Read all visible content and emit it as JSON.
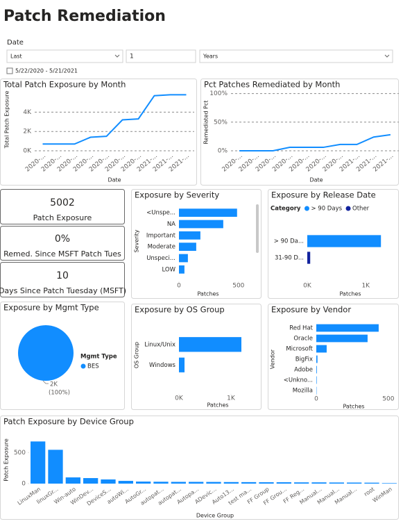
{
  "header": {
    "title": "Patch Remediation"
  },
  "filters": {
    "label": "Date",
    "mode": "Last",
    "count": "1",
    "unit": "Years",
    "range": "5/22/2020 - 5/21/2021"
  },
  "cards": [
    {
      "value": "5002",
      "label": "Patch Exposure"
    },
    {
      "value": "0%",
      "label": "Remed. Since MSFT Patch Tues"
    },
    {
      "value": "10",
      "label": "Days Since Patch Tuesday (MSFT)"
    }
  ],
  "chart_data": [
    {
      "type": "line",
      "title": "Total Patch Exposure by Month",
      "x_label": "Date",
      "y_label": "Total Patch Exposure",
      "categories": [
        "2020-...",
        "2020-...",
        "2020-...",
        "2020-...",
        "2020-...",
        "2020-...",
        "2020-...",
        "2021-...",
        "2021-...",
        "2021-..."
      ],
      "values": [
        700,
        700,
        700,
        1400,
        1500,
        3200,
        3300,
        5700,
        5800,
        5800
      ],
      "color": "#118dff",
      "ylim": [
        0,
        6400
      ],
      "yticks": [
        {
          "value": 0,
          "label": "0K"
        },
        {
          "value": 2000,
          "label": "2K"
        },
        {
          "value": 4000,
          "label": "4K"
        }
      ],
      "grid": true
    },
    {
      "type": "line",
      "title": "Pct Patches Remediated by Month",
      "x_label": "Date",
      "y_label": "Remediated Pct",
      "categories": [
        "2020-...",
        "2020-...",
        "2020-...",
        "2020-...",
        "2020-...",
        "2020-...",
        "2020-...",
        "2021-...",
        "2021-...",
        "2021-..."
      ],
      "values": [
        0,
        0,
        0,
        6,
        6,
        6,
        11,
        11,
        24,
        28
      ],
      "color": "#118dff",
      "ylim": [
        0,
        108
      ],
      "yticks": [
        {
          "value": 0,
          "label": "0%"
        },
        {
          "value": 50,
          "label": "50%"
        },
        {
          "value": 100,
          "label": "100%"
        }
      ],
      "grid": true
    },
    {
      "type": "hbar",
      "title": "Exposure by Severity",
      "x_label": "Patches",
      "y_label": "Severity",
      "categories": [
        "<Unspe...",
        "NA",
        "Important",
        "Moderate",
        "Unspeci...",
        "LOW"
      ],
      "values": [
        488,
        372,
        180,
        145,
        75,
        46
      ],
      "color": "#118dff",
      "xlim": [
        0,
        600
      ],
      "xticks": [
        0,
        500
      ]
    },
    {
      "type": "hbar",
      "title": "Exposure by Release Date",
      "x_label": "Patches",
      "legend_title": "Category",
      "categories": [
        "> 90 Da...",
        "31-90 D..."
      ],
      "series": [
        {
          "name": "> 90 Days",
          "color": "#118dff",
          "values": [
            1260,
            null
          ]
        },
        {
          "name": "Other",
          "color": "#12239e",
          "values": [
            null,
            50
          ]
        }
      ],
      "xlim": [
        0,
        1400
      ],
      "xticks": [
        {
          "value": 0,
          "label": "0K"
        },
        {
          "value": 1000,
          "label": "1K"
        }
      ]
    },
    {
      "type": "pie",
      "title": "Exposure by Mgmt Type",
      "legend_title": "Mgmt Type",
      "categories": [
        "BES"
      ],
      "values": [
        2000
      ],
      "value_labels": [
        "2K"
      ],
      "percents": [
        100
      ],
      "percent_labels": [
        "(100%)"
      ],
      "colors": [
        "#118dff"
      ]
    },
    {
      "type": "hbar",
      "title": "Exposure by OS Group",
      "x_label": "Patches",
      "y_label": "OS Group",
      "categories": [
        "Linux/Unix",
        "Windows"
      ],
      "values": [
        1200,
        107
      ],
      "color": "#118dff",
      "xlim": [
        0,
        1300
      ],
      "xticks": [
        {
          "value": 0,
          "label": "0K"
        },
        {
          "value": 1000,
          "label": "1K"
        }
      ]
    },
    {
      "type": "hbar",
      "title": "Exposure by Vendor",
      "x_label": "Patches",
      "y_label": "Vendor",
      "categories": [
        "Red Hat",
        "Oracle",
        "Microsoft",
        "BigFix",
        "Adobe",
        "<Unkno...",
        "Mozilla"
      ],
      "values": [
        433,
        356,
        72,
        8,
        4,
        3,
        2
      ],
      "color": "#118dff",
      "xlim": [
        0,
        520
      ],
      "xticks": [
        0,
        500
      ]
    },
    {
      "type": "bar",
      "title": "Patch Exposure by Device Group",
      "x_label": "Device Group",
      "y_label": "Patch Exposure",
      "categories": [
        "LinuxMan",
        "linuxGr...",
        "Win-auto",
        "WinDev...",
        "DeviceS...",
        "autoWi...",
        "AutoGr...",
        "autopat...",
        "autopat...",
        "Autopa...",
        "ADevic...",
        "Auto13...",
        "test ma...",
        "FF Group",
        "FF Grou...",
        "FF Reg...",
        "Manual...",
        "Manual...",
        "Manual...",
        "root",
        "WinMan"
      ],
      "values": [
        678,
        544,
        100,
        89,
        67,
        44,
        33,
        30,
        28,
        28,
        27,
        25,
        24,
        22,
        22,
        20,
        20,
        18,
        17,
        15,
        8
      ],
      "color": "#118dff",
      "ylim": [
        0,
        760
      ],
      "yticks": [
        0,
        500
      ]
    }
  ]
}
